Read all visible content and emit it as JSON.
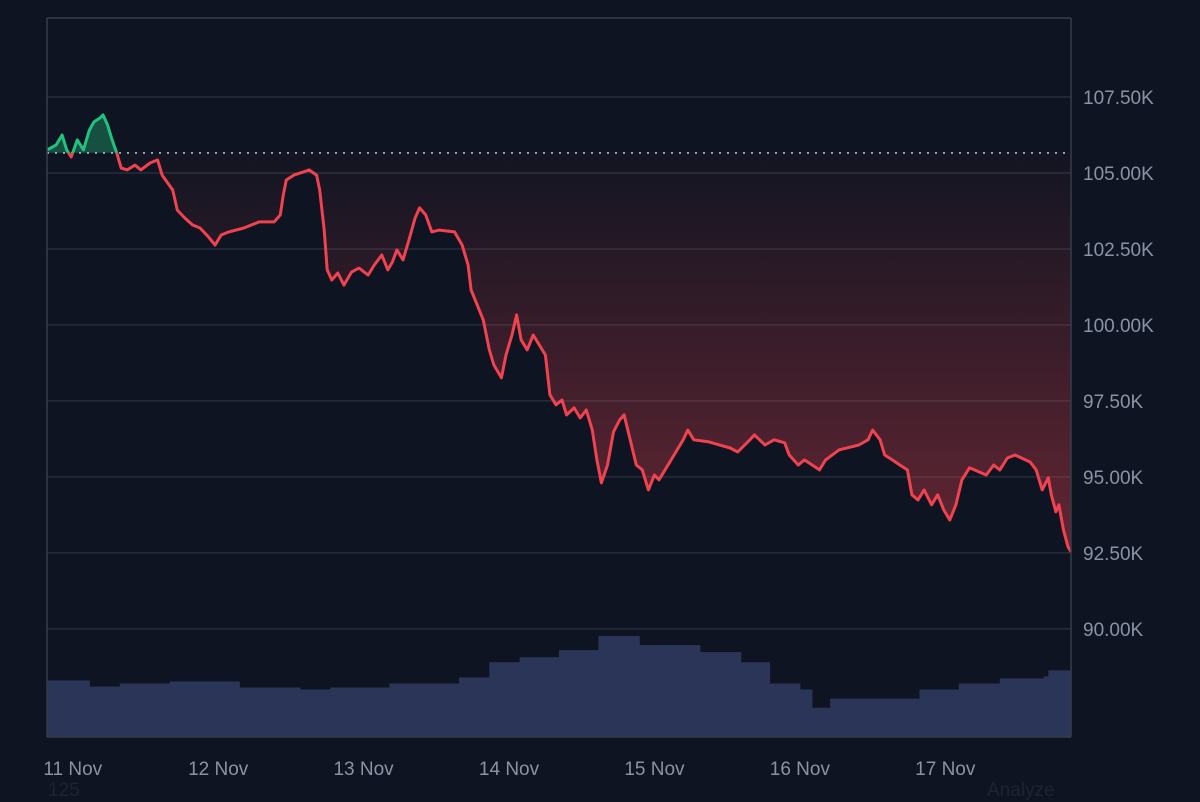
{
  "chart_data": {
    "type": "area",
    "baseline_price": 105660,
    "colors": {
      "background": "#0e1421",
      "up": "#22c17f",
      "down": "#f0424f",
      "volume": "#2b3558",
      "grid": "#262d3c",
      "baseline": "#b8bec9"
    },
    "xlim": [
      "11-10 19:45",
      "11-17 20:45"
    ],
    "ylim": [
      86440,
      110100
    ],
    "grid": true,
    "y_ticks": [
      {
        "value": 90000,
        "label": "90.00K"
      },
      {
        "value": 92500,
        "label": "92.50K"
      },
      {
        "value": 95000,
        "label": "95.00K"
      },
      {
        "value": 97500,
        "label": "97.50K"
      },
      {
        "value": 100000,
        "label": "100.00K"
      },
      {
        "value": 102500,
        "label": "102.50K"
      },
      {
        "value": 105000,
        "label": "105.00K"
      },
      {
        "value": 107500,
        "label": "107.50K"
      }
    ],
    "x_ticks": [
      {
        "value": "11-11 00:00",
        "label": "11 Nov"
      },
      {
        "value": "11-12 00:00",
        "label": "12 Nov"
      },
      {
        "value": "11-13 00:00",
        "label": "13 Nov"
      },
      {
        "value": "11-14 00:00",
        "label": "14 Nov"
      },
      {
        "value": "11-15 00:00",
        "label": "15 Nov"
      },
      {
        "value": "11-16 00:00",
        "label": "16 Nov"
      },
      {
        "value": "11-17 00:00",
        "label": "17 Nov"
      }
    ],
    "price": [
      [
        "11-10 19:45",
        105760
      ],
      [
        "11-10 21:15",
        105920
      ],
      [
        "11-10 22:15",
        106250
      ],
      [
        "11-10 23:00",
        105760
      ],
      [
        "11-10 23:45",
        105530
      ],
      [
        "11-11 00:45",
        106090
      ],
      [
        "11-11 01:45",
        105760
      ],
      [
        "11-11 02:45",
        106410
      ],
      [
        "11-11 03:30",
        106680
      ],
      [
        "11-11 04:30",
        106810
      ],
      [
        "11-11 05:00",
        106910
      ],
      [
        "11-11 05:45",
        106580
      ],
      [
        "11-11 06:30",
        106090
      ],
      [
        "11-11 07:15",
        105660
      ],
      [
        "11-11 08:00",
        105160
      ],
      [
        "11-11 09:00",
        105100
      ],
      [
        "11-11 10:15",
        105260
      ],
      [
        "11-11 11:15",
        105100
      ],
      [
        "11-11 12:45",
        105330
      ],
      [
        "11-11 14:00",
        105430
      ],
      [
        "11-11 14:45",
        104930
      ],
      [
        "11-11 16:30",
        104440
      ],
      [
        "11-11 17:15",
        103780
      ],
      [
        "11-11 18:30",
        103520
      ],
      [
        "11-11 19:45",
        103290
      ],
      [
        "11-11 21:00",
        103190
      ],
      [
        "11-11 22:15",
        102930
      ],
      [
        "11-11 23:30",
        102630
      ],
      [
        "11-12 00:30",
        102960
      ],
      [
        "11-12 01:45",
        103060
      ],
      [
        "11-12 04:15",
        103190
      ],
      [
        "11-12 06:45",
        103390
      ],
      [
        "11-12 09:15",
        103390
      ],
      [
        "11-12 10:15",
        103620
      ],
      [
        "11-12 10:45",
        104280
      ],
      [
        "11-12 11:15",
        104770
      ],
      [
        "11-12 12:30",
        104930
      ],
      [
        "11-12 14:00",
        105030
      ],
      [
        "11-12 15:00",
        105100
      ],
      [
        "11-12 16:15",
        104930
      ],
      [
        "11-12 16:45",
        104440
      ],
      [
        "11-12 17:30",
        103120
      ],
      [
        "11-12 18:00",
        101810
      ],
      [
        "11-12 18:45",
        101480
      ],
      [
        "11-12 19:45",
        101710
      ],
      [
        "11-12 20:45",
        101310
      ],
      [
        "11-12 22:00",
        101740
      ],
      [
        "11-12 23:15",
        101870
      ],
      [
        "11-13 00:45",
        101640
      ],
      [
        "11-13 01:45",
        101970
      ],
      [
        "11-13 03:00",
        102300
      ],
      [
        "11-13 04:00",
        101810
      ],
      [
        "11-13 04:45",
        102070
      ],
      [
        "11-13 05:30",
        102470
      ],
      [
        "11-13 06:30",
        102140
      ],
      [
        "11-13 07:30",
        102800
      ],
      [
        "11-13 08:30",
        103520
      ],
      [
        "11-13 09:15",
        103850
      ],
      [
        "11-13 10:15",
        103620
      ],
      [
        "11-13 11:15",
        103060
      ],
      [
        "11-13 12:30",
        103120
      ],
      [
        "11-13 15:00",
        103060
      ],
      [
        "11-13 16:15",
        102630
      ],
      [
        "11-13 17:15",
        101970
      ],
      [
        "11-13 17:45",
        101150
      ],
      [
        "11-13 18:45",
        100660
      ],
      [
        "11-13 19:45",
        100160
      ],
      [
        "11-13 20:45",
        99180
      ],
      [
        "11-13 21:30",
        98680
      ],
      [
        "11-13 22:45",
        98260
      ],
      [
        "11-13 23:30",
        99010
      ],
      [
        "11-14 00:30",
        99670
      ],
      [
        "11-14 01:15",
        100330
      ],
      [
        "11-14 02:00",
        99510
      ],
      [
        "11-14 03:00",
        99180
      ],
      [
        "11-14 04:00",
        99670
      ],
      [
        "11-14 05:00",
        99340
      ],
      [
        "11-14 06:00",
        99010
      ],
      [
        "11-14 06:45",
        97700
      ],
      [
        "11-14 07:45",
        97370
      ],
      [
        "11-14 08:45",
        97530
      ],
      [
        "11-14 09:30",
        97040
      ],
      [
        "11-14 10:45",
        97270
      ],
      [
        "11-14 11:45",
        96940
      ],
      [
        "11-14 12:45",
        97200
      ],
      [
        "11-14 13:45",
        96540
      ],
      [
        "11-14 14:30",
        95560
      ],
      [
        "11-14 15:15",
        94800
      ],
      [
        "11-14 16:15",
        95390
      ],
      [
        "11-14 17:15",
        96480
      ],
      [
        "11-14 18:15",
        96870
      ],
      [
        "11-14 19:00",
        97040
      ],
      [
        "11-14 20:00",
        96220
      ],
      [
        "11-14 21:00",
        95390
      ],
      [
        "11-14 22:00",
        95230
      ],
      [
        "11-14 23:00",
        94570
      ],
      [
        "11-15 00:00",
        95060
      ],
      [
        "11-15 00:45",
        94900
      ],
      [
        "11-15 02:45",
        95560
      ],
      [
        "11-15 04:45",
        96220
      ],
      [
        "11-15 05:30",
        96540
      ],
      [
        "11-15 06:30",
        96220
      ],
      [
        "11-15 09:00",
        96150
      ],
      [
        "11-15 12:30",
        95950
      ],
      [
        "11-15 13:45",
        95820
      ],
      [
        "11-15 15:45",
        96220
      ],
      [
        "11-15 16:30",
        96380
      ],
      [
        "11-15 18:15",
        96050
      ],
      [
        "11-15 19:45",
        96220
      ],
      [
        "11-15 21:30",
        96120
      ],
      [
        "11-15 22:15",
        95720
      ],
      [
        "11-15 23:45",
        95390
      ],
      [
        "11-16 00:45",
        95560
      ],
      [
        "11-16 03:15",
        95230
      ],
      [
        "11-16 04:15",
        95560
      ],
      [
        "11-16 06:30",
        95890
      ],
      [
        "11-16 09:45",
        96050
      ],
      [
        "11-16 11:15",
        96220
      ],
      [
        "11-16 12:00",
        96540
      ],
      [
        "11-16 13:15",
        96220
      ],
      [
        "11-16 14:00",
        95720
      ],
      [
        "11-16 15:15",
        95560
      ],
      [
        "11-16 16:30",
        95390
      ],
      [
        "11-16 17:45",
        95230
      ],
      [
        "11-16 18:30",
        94410
      ],
      [
        "11-16 19:30",
        94240
      ],
      [
        "11-16 20:30",
        94570
      ],
      [
        "11-16 21:45",
        94080
      ],
      [
        "11-16 22:45",
        94410
      ],
      [
        "11-16 23:45",
        93910
      ],
      [
        "11-17 00:45",
        93580
      ],
      [
        "11-17 01:45",
        94080
      ],
      [
        "11-17 02:45",
        94900
      ],
      [
        "11-17 04:00",
        95300
      ],
      [
        "11-17 06:45",
        95060
      ],
      [
        "11-17 08:00",
        95390
      ],
      [
        "11-17 09:00",
        95230
      ],
      [
        "11-17 10:15",
        95620
      ],
      [
        "11-17 11:30",
        95720
      ],
      [
        "11-17 14:00",
        95490
      ],
      [
        "11-17 15:00",
        95230
      ],
      [
        "11-17 16:00",
        94570
      ],
      [
        "11-17 17:00",
        94970
      ],
      [
        "11-17 17:30",
        94410
      ],
      [
        "11-17 18:15",
        93850
      ],
      [
        "11-17 18:45",
        94080
      ],
      [
        "11-17 19:30",
        93260
      ],
      [
        "11-17 20:15",
        92700
      ],
      [
        "11-17 20:45",
        92530
      ]
    ],
    "volume_pct_of_peak": [
      [
        "11-10 19:45",
        56
      ],
      [
        "11-11 02:45",
        50
      ],
      [
        "11-11 07:45",
        53
      ],
      [
        "11-11 16:00",
        55
      ],
      [
        "11-12 03:30",
        49
      ],
      [
        "11-12 13:30",
        47
      ],
      [
        "11-12 18:30",
        49
      ],
      [
        "11-13 04:15",
        53
      ],
      [
        "11-13 15:45",
        59
      ],
      [
        "11-13 20:45",
        74
      ],
      [
        "11-14 01:45",
        79
      ],
      [
        "11-14 08:15",
        86
      ],
      [
        "11-14 14:45",
        100
      ],
      [
        "11-14 21:30",
        91
      ],
      [
        "11-15 07:30",
        84
      ],
      [
        "11-15 14:15",
        74
      ],
      [
        "11-15 19:00",
        53
      ],
      [
        "11-16 00:00",
        47
      ],
      [
        "11-16 02:00",
        29
      ],
      [
        "11-16 05:00",
        38
      ],
      [
        "11-16 13:15",
        38
      ],
      [
        "11-16 19:45",
        47
      ],
      [
        "11-17 02:15",
        53
      ],
      [
        "11-17 09:00",
        58
      ],
      [
        "11-17 16:15",
        60
      ],
      [
        "11-17 17:00",
        66
      ],
      [
        "11-17 20:45",
        66
      ]
    ]
  },
  "footer": {
    "left_text": "125",
    "right_text": "Analyze"
  }
}
